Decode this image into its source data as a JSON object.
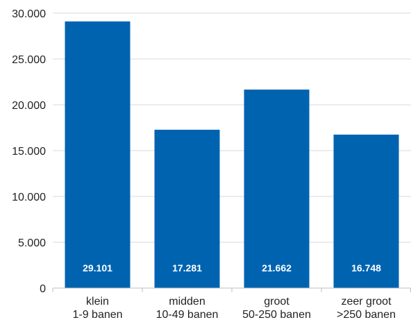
{
  "chart_data": {
    "type": "bar",
    "title": "",
    "xlabel": "",
    "ylabel": "",
    "categories": [
      [
        "klein",
        "1-9 banen"
      ],
      [
        "midden",
        "10-49 banen"
      ],
      [
        "groot",
        "50-250 banen"
      ],
      [
        "zeer groot",
        ">250 banen"
      ]
    ],
    "values": [
      29101,
      17281,
      21662,
      16748
    ],
    "value_labels": [
      "29.101",
      "17.281",
      "21.662",
      "16.748"
    ],
    "ylim": [
      0,
      30000
    ],
    "yticks": [
      0,
      5000,
      10000,
      15000,
      20000,
      25000,
      30000
    ],
    "ytick_labels": [
      "0",
      "5.000",
      "10.000",
      "15.000",
      "20.000",
      "25.000",
      "30.000"
    ],
    "grid": true,
    "legend": "none",
    "colors": {
      "bar": "#0063b0",
      "grid": "#d9d9d9",
      "axis": "#bfbfbf",
      "data_label": "#ffffff"
    }
  }
}
